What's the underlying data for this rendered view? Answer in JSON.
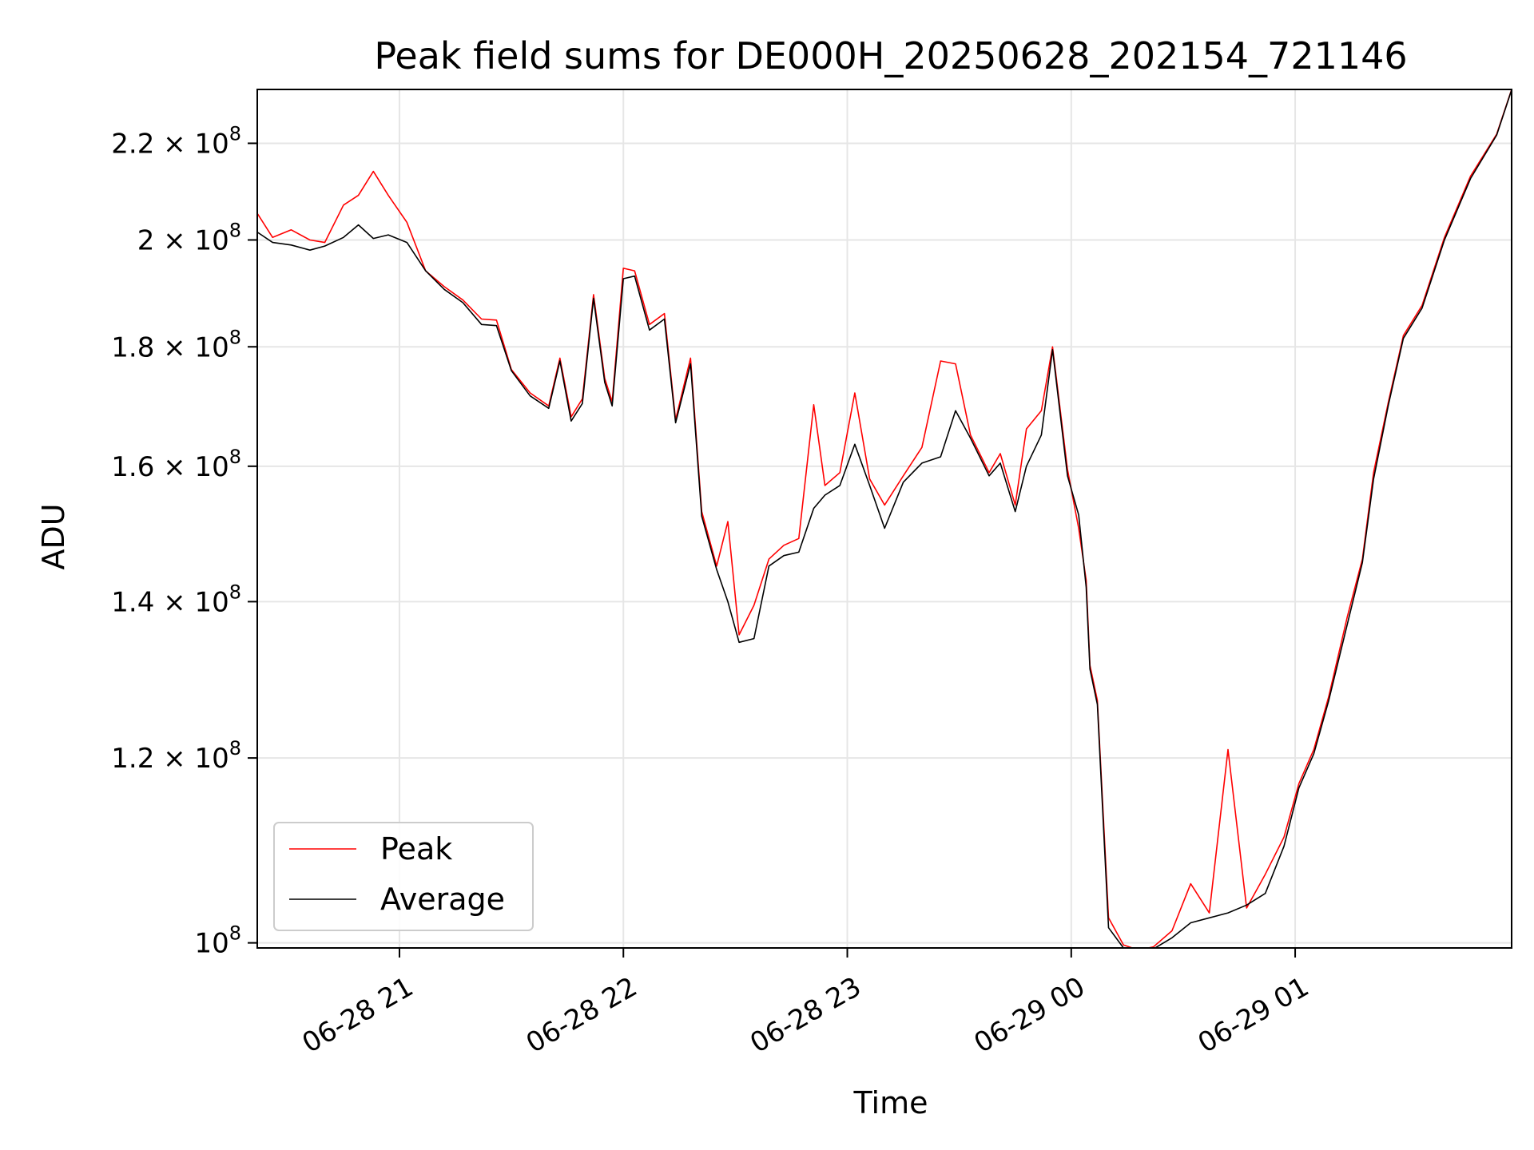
{
  "chart_data": {
    "type": "line",
    "title": "Peak field sums for DE000H_20250628_202154_721146",
    "xlabel": "Time",
    "ylabel": "ADU",
    "y_scale": "log",
    "ylim": [
      99500000,
      232000000
    ],
    "xlim": [
      "2025-06-28 20:21:54",
      "2025-06-29 01:58:00"
    ],
    "grid": true,
    "legend_position": "lower-left",
    "x_ticks": [
      {
        "t": "2025-06-28 21:00",
        "label": "06-28 21"
      },
      {
        "t": "2025-06-28 22:00",
        "label": "06-28 22"
      },
      {
        "t": "2025-06-28 23:00",
        "label": "06-28 23"
      },
      {
        "t": "2025-06-29 00:00",
        "label": "06-29 00"
      },
      {
        "t": "2025-06-29 01:00",
        "label": "06-29 01"
      }
    ],
    "y_ticks": [
      {
        "value": 100000000,
        "mantissa": "10",
        "exp": "8"
      },
      {
        "value": 120000000,
        "mantissa": "1.2 × 10",
        "exp": "8"
      },
      {
        "value": 140000000,
        "mantissa": "1.4 × 10",
        "exp": "8"
      },
      {
        "value": 160000000,
        "mantissa": "1.6 × 10",
        "exp": "8"
      },
      {
        "value": 180000000,
        "mantissa": "1.8 × 10",
        "exp": "8"
      },
      {
        "value": 200000000,
        "mantissa": "2 × 10",
        "exp": "8"
      },
      {
        "value": 220000000,
        "mantissa": "2.2 × 10",
        "exp": "8"
      }
    ],
    "x": [
      "2025-06-28 20:22",
      "2025-06-28 20:26",
      "2025-06-28 20:31",
      "2025-06-28 20:36",
      "2025-06-28 20:40",
      "2025-06-28 20:45",
      "2025-06-28 20:49",
      "2025-06-28 20:53",
      "2025-06-28 20:57",
      "2025-06-28 21:02",
      "2025-06-28 21:07",
      "2025-06-28 21:12",
      "2025-06-28 21:17",
      "2025-06-28 21:22",
      "2025-06-28 21:26",
      "2025-06-28 21:30",
      "2025-06-28 21:35",
      "2025-06-28 21:40",
      "2025-06-28 21:43",
      "2025-06-28 21:46",
      "2025-06-28 21:49",
      "2025-06-28 21:52",
      "2025-06-28 21:55",
      "2025-06-28 21:57",
      "2025-06-28 22:00",
      "2025-06-28 22:03",
      "2025-06-28 22:07",
      "2025-06-28 22:11",
      "2025-06-28 22:14",
      "2025-06-28 22:18",
      "2025-06-28 22:21",
      "2025-06-28 22:25",
      "2025-06-28 22:28",
      "2025-06-28 22:31",
      "2025-06-28 22:35",
      "2025-06-28 22:39",
      "2025-06-28 22:43",
      "2025-06-28 22:47",
      "2025-06-28 22:51",
      "2025-06-28 22:54",
      "2025-06-28 22:58",
      "2025-06-28 23:02",
      "2025-06-28 23:06",
      "2025-06-28 23:10",
      "2025-06-28 23:15",
      "2025-06-28 23:20",
      "2025-06-28 23:25",
      "2025-06-28 23:29",
      "2025-06-28 23:33",
      "2025-06-28 23:38",
      "2025-06-28 23:41",
      "2025-06-28 23:45",
      "2025-06-28 23:48",
      "2025-06-28 23:52",
      "2025-06-28 23:55",
      "2025-06-28 23:59",
      "2025-06-29 00:02",
      "2025-06-29 00:04",
      "2025-06-29 00:05",
      "2025-06-29 00:07",
      "2025-06-29 00:10",
      "2025-06-29 00:14",
      "2025-06-29 00:18",
      "2025-06-29 00:22",
      "2025-06-29 00:27",
      "2025-06-29 00:32",
      "2025-06-29 00:37",
      "2025-06-29 00:42",
      "2025-06-29 00:47",
      "2025-06-29 00:52",
      "2025-06-29 00:57",
      "2025-06-29 01:01",
      "2025-06-29 01:05",
      "2025-06-29 01:09",
      "2025-06-29 01:14",
      "2025-06-29 01:18",
      "2025-06-29 01:21",
      "2025-06-29 01:25",
      "2025-06-29 01:29",
      "2025-06-29 01:34",
      "2025-06-29 01:40",
      "2025-06-29 01:47",
      "2025-06-29 01:54",
      "2025-06-29 01:58"
    ],
    "series": [
      {
        "name": "Peak",
        "color": "#ff0000",
        "values": [
          205200000,
          200500000,
          202000000,
          200000000,
          199500000,
          207000000,
          209000000,
          214000000,
          209000000,
          203500000,
          194000000,
          191000000,
          188500000,
          185000000,
          184800000,
          176000000,
          172000000,
          169800000,
          178000000,
          168000000,
          171000000,
          189500000,
          174500000,
          170500000,
          194500000,
          194000000,
          184000000,
          186000000,
          167500000,
          178000000,
          153000000,
          145000000,
          151500000,
          135500000,
          139500000,
          146000000,
          148000000,
          149000000,
          170000000,
          157000000,
          159000000,
          172000000,
          158000000,
          154000000,
          158500000,
          163000000,
          177500000,
          177000000,
          165000000,
          159000000,
          162000000,
          154000000,
          166000000,
          169000000,
          180000000,
          159500000,
          150500000,
          143000000,
          131500000,
          127000000,
          102500000,
          99800000,
          99300000,
          99600000,
          101200000,
          106000000,
          103000000,
          121000000,
          103500000,
          107000000,
          111000000,
          117000000,
          121000000,
          127500000,
          138000000,
          146000000,
          159000000,
          170500000,
          182000000,
          187500000,
          200500000,
          213000000,
          222000000,
          232000000
        ]
      },
      {
        "name": "Average",
        "color": "#000000",
        "values": [
          201500000,
          199500000,
          199000000,
          198000000,
          198800000,
          200500000,
          203000000,
          200300000,
          201000000,
          199500000,
          194000000,
          190500000,
          188000000,
          184000000,
          183800000,
          175800000,
          171500000,
          169400000,
          177500000,
          167300000,
          170200000,
          188800000,
          173800000,
          169800000,
          192500000,
          193000000,
          183000000,
          185000000,
          167000000,
          177000000,
          152300000,
          144500000,
          140000000,
          134500000,
          135000000,
          145000000,
          146500000,
          147000000,
          153500000,
          155500000,
          157000000,
          163500000,
          157000000,
          150500000,
          157500000,
          160500000,
          161500000,
          169000000,
          164500000,
          158500000,
          160500000,
          153000000,
          160000000,
          165000000,
          179500000,
          158500000,
          152500000,
          142000000,
          131000000,
          126500000,
          101500000,
          99500000,
          99100000,
          99400000,
          100500000,
          102000000,
          102500000,
          103000000,
          103800000,
          105000000,
          110000000,
          116500000,
          120500000,
          127000000,
          137000000,
          145500000,
          158000000,
          170000000,
          181500000,
          187000000,
          200000000,
          212500000,
          221800000,
          231900000
        ]
      }
    ]
  }
}
